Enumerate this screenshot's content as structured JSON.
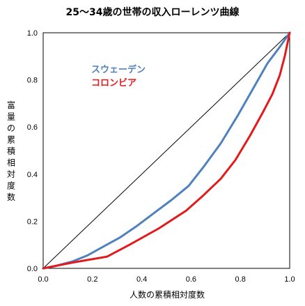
{
  "chart_data": {
    "type": "line",
    "title": "25～34歳の世帯の収入ローレンツ曲線",
    "xlabel": "人数の累積相対度数",
    "ylabel": "富量の累積相対度数",
    "xlim": [
      0.0,
      1.0
    ],
    "ylim": [
      0.0,
      1.0
    ],
    "xticks": [
      0.0,
      0.2,
      0.4,
      0.6,
      0.8,
      1.0
    ],
    "yticks": [
      0.0,
      0.2,
      0.4,
      0.6,
      0.8,
      1.0
    ],
    "tick_labels": [
      "0.0",
      "0.2",
      "0.4",
      "0.6",
      "0.8",
      "1.0"
    ],
    "grid": false,
    "legend_placement": "upper-left inside",
    "equality_line": {
      "x": [
        0.0,
        1.0
      ],
      "y": [
        0.0,
        1.0
      ],
      "color": "#000000"
    },
    "series": [
      {
        "name": "スウェーデン",
        "color": "#4f81bd",
        "x": [
          0.0,
          0.05,
          0.12,
          0.18,
          0.24,
          0.31,
          0.38,
          0.45,
          0.52,
          0.59,
          0.65,
          0.72,
          0.79,
          0.85,
          0.91,
          0.96,
          1.0
        ],
        "y": [
          0.0,
          0.01,
          0.03,
          0.055,
          0.09,
          0.13,
          0.18,
          0.235,
          0.29,
          0.35,
          0.43,
          0.53,
          0.65,
          0.76,
          0.87,
          0.94,
          1.0
        ]
      },
      {
        "name": "コロンビア",
        "color": "#e31a1c",
        "x": [
          0.0,
          0.12,
          0.26,
          0.35,
          0.47,
          0.58,
          0.65,
          0.72,
          0.78,
          0.84,
          0.89,
          0.93,
          0.96,
          0.98,
          1.0
        ],
        "y": [
          0.0,
          0.025,
          0.05,
          0.1,
          0.17,
          0.245,
          0.31,
          0.38,
          0.46,
          0.565,
          0.66,
          0.74,
          0.82,
          0.9,
          1.0
        ]
      }
    ]
  }
}
